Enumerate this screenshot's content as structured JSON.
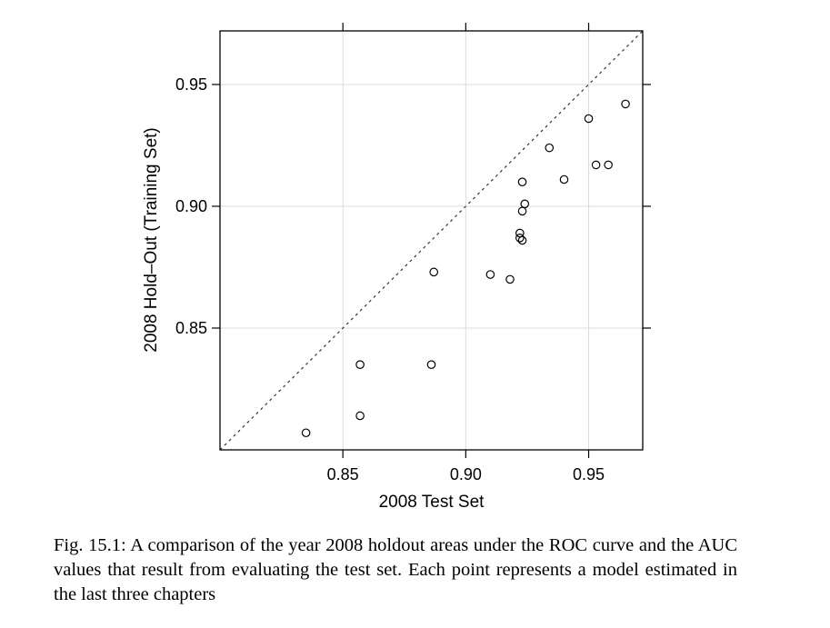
{
  "chart_data": {
    "type": "scatter",
    "xlabel": "2008 Test Set",
    "ylabel": "2008 Hold–Out (Training Set)",
    "xlim": [
      0.8,
      0.972
    ],
    "ylim": [
      0.8,
      0.972
    ],
    "xticks": [
      {
        "value": 0.85,
        "label": "0.85"
      },
      {
        "value": 0.9,
        "label": "0.90"
      },
      {
        "value": 0.95,
        "label": "0.95"
      }
    ],
    "yticks": [
      {
        "value": 0.85,
        "label": "0.85"
      },
      {
        "value": 0.9,
        "label": "0.90"
      },
      {
        "value": 0.95,
        "label": "0.95"
      }
    ],
    "grid": true,
    "reference_line": "y = x (dashed)",
    "marker": "open circle",
    "points": [
      {
        "x": 0.835,
        "y": 0.807
      },
      {
        "x": 0.857,
        "y": 0.814
      },
      {
        "x": 0.857,
        "y": 0.835
      },
      {
        "x": 0.886,
        "y": 0.835
      },
      {
        "x": 0.887,
        "y": 0.873
      },
      {
        "x": 0.91,
        "y": 0.872
      },
      {
        "x": 0.918,
        "y": 0.87
      },
      {
        "x": 0.922,
        "y": 0.889
      },
      {
        "x": 0.922,
        "y": 0.887
      },
      {
        "x": 0.923,
        "y": 0.886
      },
      {
        "x": 0.923,
        "y": 0.898
      },
      {
        "x": 0.924,
        "y": 0.901
      },
      {
        "x": 0.923,
        "y": 0.91
      },
      {
        "x": 0.934,
        "y": 0.924
      },
      {
        "x": 0.94,
        "y": 0.911
      },
      {
        "x": 0.95,
        "y": 0.936
      },
      {
        "x": 0.953,
        "y": 0.917
      },
      {
        "x": 0.958,
        "y": 0.917
      },
      {
        "x": 0.965,
        "y": 0.942
      }
    ]
  },
  "caption": "Fig. 15.1: A comparison of the year 2008 holdout areas under the ROC curve and the AUC values that result from evaluating the test set. Each point represents a model estimated in the last three chapters"
}
